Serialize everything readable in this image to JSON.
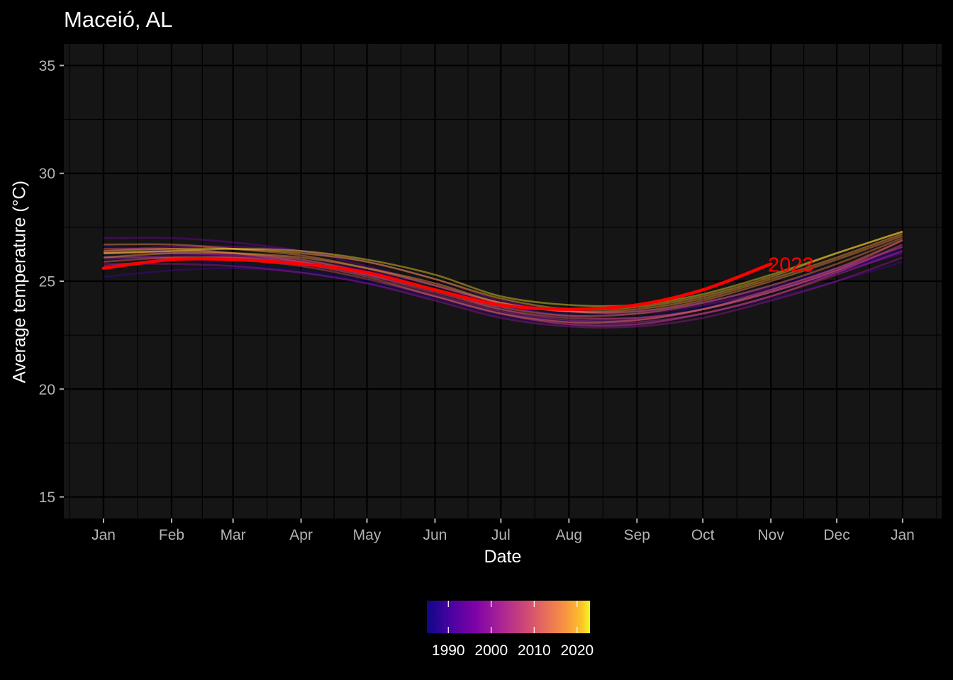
{
  "chart_data": {
    "type": "line",
    "title": "Maceió, AL",
    "xlabel": "Date",
    "ylabel": "Average temperature (°C)",
    "ylim": [
      14,
      36
    ],
    "yticks": [
      15,
      20,
      25,
      30,
      35
    ],
    "xticks": [
      "Jan",
      "Feb",
      "Mar",
      "Apr",
      "May",
      "Jun",
      "Jul",
      "Aug",
      "Sep",
      "Oct",
      "Nov",
      "Dec",
      "Jan"
    ],
    "x": [
      "Jan 1",
      "Feb 1",
      "Mar 1",
      "Apr 1",
      "May 1",
      "Jun 1",
      "Jul 1",
      "Aug 1",
      "Sep 1",
      "Oct 1",
      "Nov 1",
      "Dec 1",
      "Dec 31"
    ],
    "background": "#151515",
    "grid": true,
    "colorbar": {
      "ticks": [
        "1990",
        "2000",
        "2010",
        "2020"
      ],
      "range": [
        1985,
        2023
      ],
      "palette": "plasma",
      "position": "bottom"
    },
    "highlight": {
      "name": "2023",
      "color": "#ff0000",
      "values": [
        25.6,
        26.0,
        26.0,
        25.8,
        25.4,
        24.6,
        23.9,
        23.7,
        23.9,
        24.6,
        25.8
      ]
    },
    "series": [
      {
        "year": 1985,
        "values": [
          26.2,
          26.0,
          25.8,
          25.5,
          25.0,
          24.3,
          23.5,
          23.2,
          23.3,
          23.8,
          24.6,
          25.4,
          26.4
        ]
      },
      {
        "year": 1987,
        "values": [
          26.6,
          26.4,
          26.1,
          25.8,
          25.3,
          24.6,
          23.8,
          23.5,
          23.6,
          24.0,
          24.8,
          25.6,
          26.5
        ]
      },
      {
        "year": 1990,
        "values": [
          25.2,
          25.5,
          25.6,
          25.4,
          24.9,
          24.2,
          23.4,
          23.0,
          23.0,
          23.5,
          24.2,
          25.0,
          25.9
        ]
      },
      {
        "year": 1993,
        "values": [
          26.0,
          26.2,
          26.2,
          26.0,
          25.5,
          24.8,
          24.0,
          23.6,
          23.6,
          24.0,
          24.7,
          25.5,
          26.4
        ]
      },
      {
        "year": 1995,
        "values": [
          27.0,
          27.0,
          26.8,
          26.4,
          25.7,
          24.8,
          23.9,
          23.4,
          23.3,
          23.7,
          24.5,
          25.4,
          26.3
        ]
      },
      {
        "year": 1998,
        "values": [
          26.4,
          26.6,
          26.6,
          26.4,
          25.9,
          25.1,
          24.1,
          23.6,
          23.5,
          23.9,
          24.6,
          25.6,
          26.6
        ]
      },
      {
        "year": 2000,
        "values": [
          25.8,
          25.8,
          25.7,
          25.4,
          24.9,
          24.1,
          23.3,
          22.9,
          22.9,
          23.3,
          24.1,
          25.0,
          26.1
        ]
      },
      {
        "year": 2003,
        "values": [
          26.3,
          26.3,
          26.2,
          25.9,
          25.3,
          24.4,
          23.6,
          23.1,
          23.1,
          23.5,
          24.3,
          25.3,
          26.4
        ]
      },
      {
        "year": 2005,
        "values": [
          25.7,
          26.0,
          26.1,
          25.9,
          25.4,
          24.6,
          23.7,
          23.2,
          23.2,
          23.7,
          24.5,
          25.5,
          26.6
        ]
      },
      {
        "year": 2008,
        "values": [
          26.1,
          26.1,
          26.0,
          25.7,
          25.1,
          24.3,
          23.5,
          23.0,
          23.0,
          23.5,
          24.3,
          25.4,
          26.7
        ]
      },
      {
        "year": 2010,
        "values": [
          26.5,
          26.5,
          26.3,
          25.9,
          25.3,
          24.5,
          23.7,
          23.3,
          23.3,
          23.7,
          24.5,
          25.5,
          26.9
        ]
      },
      {
        "year": 2012,
        "values": [
          25.9,
          26.1,
          26.1,
          25.8,
          25.2,
          24.3,
          23.5,
          23.1,
          23.2,
          23.7,
          24.6,
          25.6,
          26.9
        ]
      },
      {
        "year": 2014,
        "values": [
          26.3,
          26.4,
          26.3,
          26.0,
          25.4,
          24.6,
          23.8,
          23.4,
          23.5,
          24.0,
          24.8,
          25.8,
          27.0
        ]
      },
      {
        "year": 2016,
        "values": [
          26.7,
          26.7,
          26.5,
          26.2,
          25.6,
          24.8,
          24.0,
          23.6,
          23.6,
          24.1,
          25.0,
          26.0,
          27.1
        ]
      },
      {
        "year": 2018,
        "values": [
          26.1,
          26.3,
          26.3,
          26.1,
          25.6,
          24.9,
          24.0,
          23.6,
          23.7,
          24.2,
          25.1,
          26.1,
          27.2
        ]
      },
      {
        "year": 2020,
        "values": [
          26.4,
          26.5,
          26.5,
          26.3,
          25.9,
          25.1,
          24.2,
          23.7,
          23.8,
          24.3,
          25.2,
          26.3,
          27.3
        ]
      },
      {
        "year": 2022,
        "values": [
          26.3,
          26.4,
          26.5,
          26.4,
          26.0,
          25.3,
          24.3,
          23.9,
          23.9,
          24.4,
          25.3,
          26.3,
          27.3
        ]
      }
    ]
  }
}
